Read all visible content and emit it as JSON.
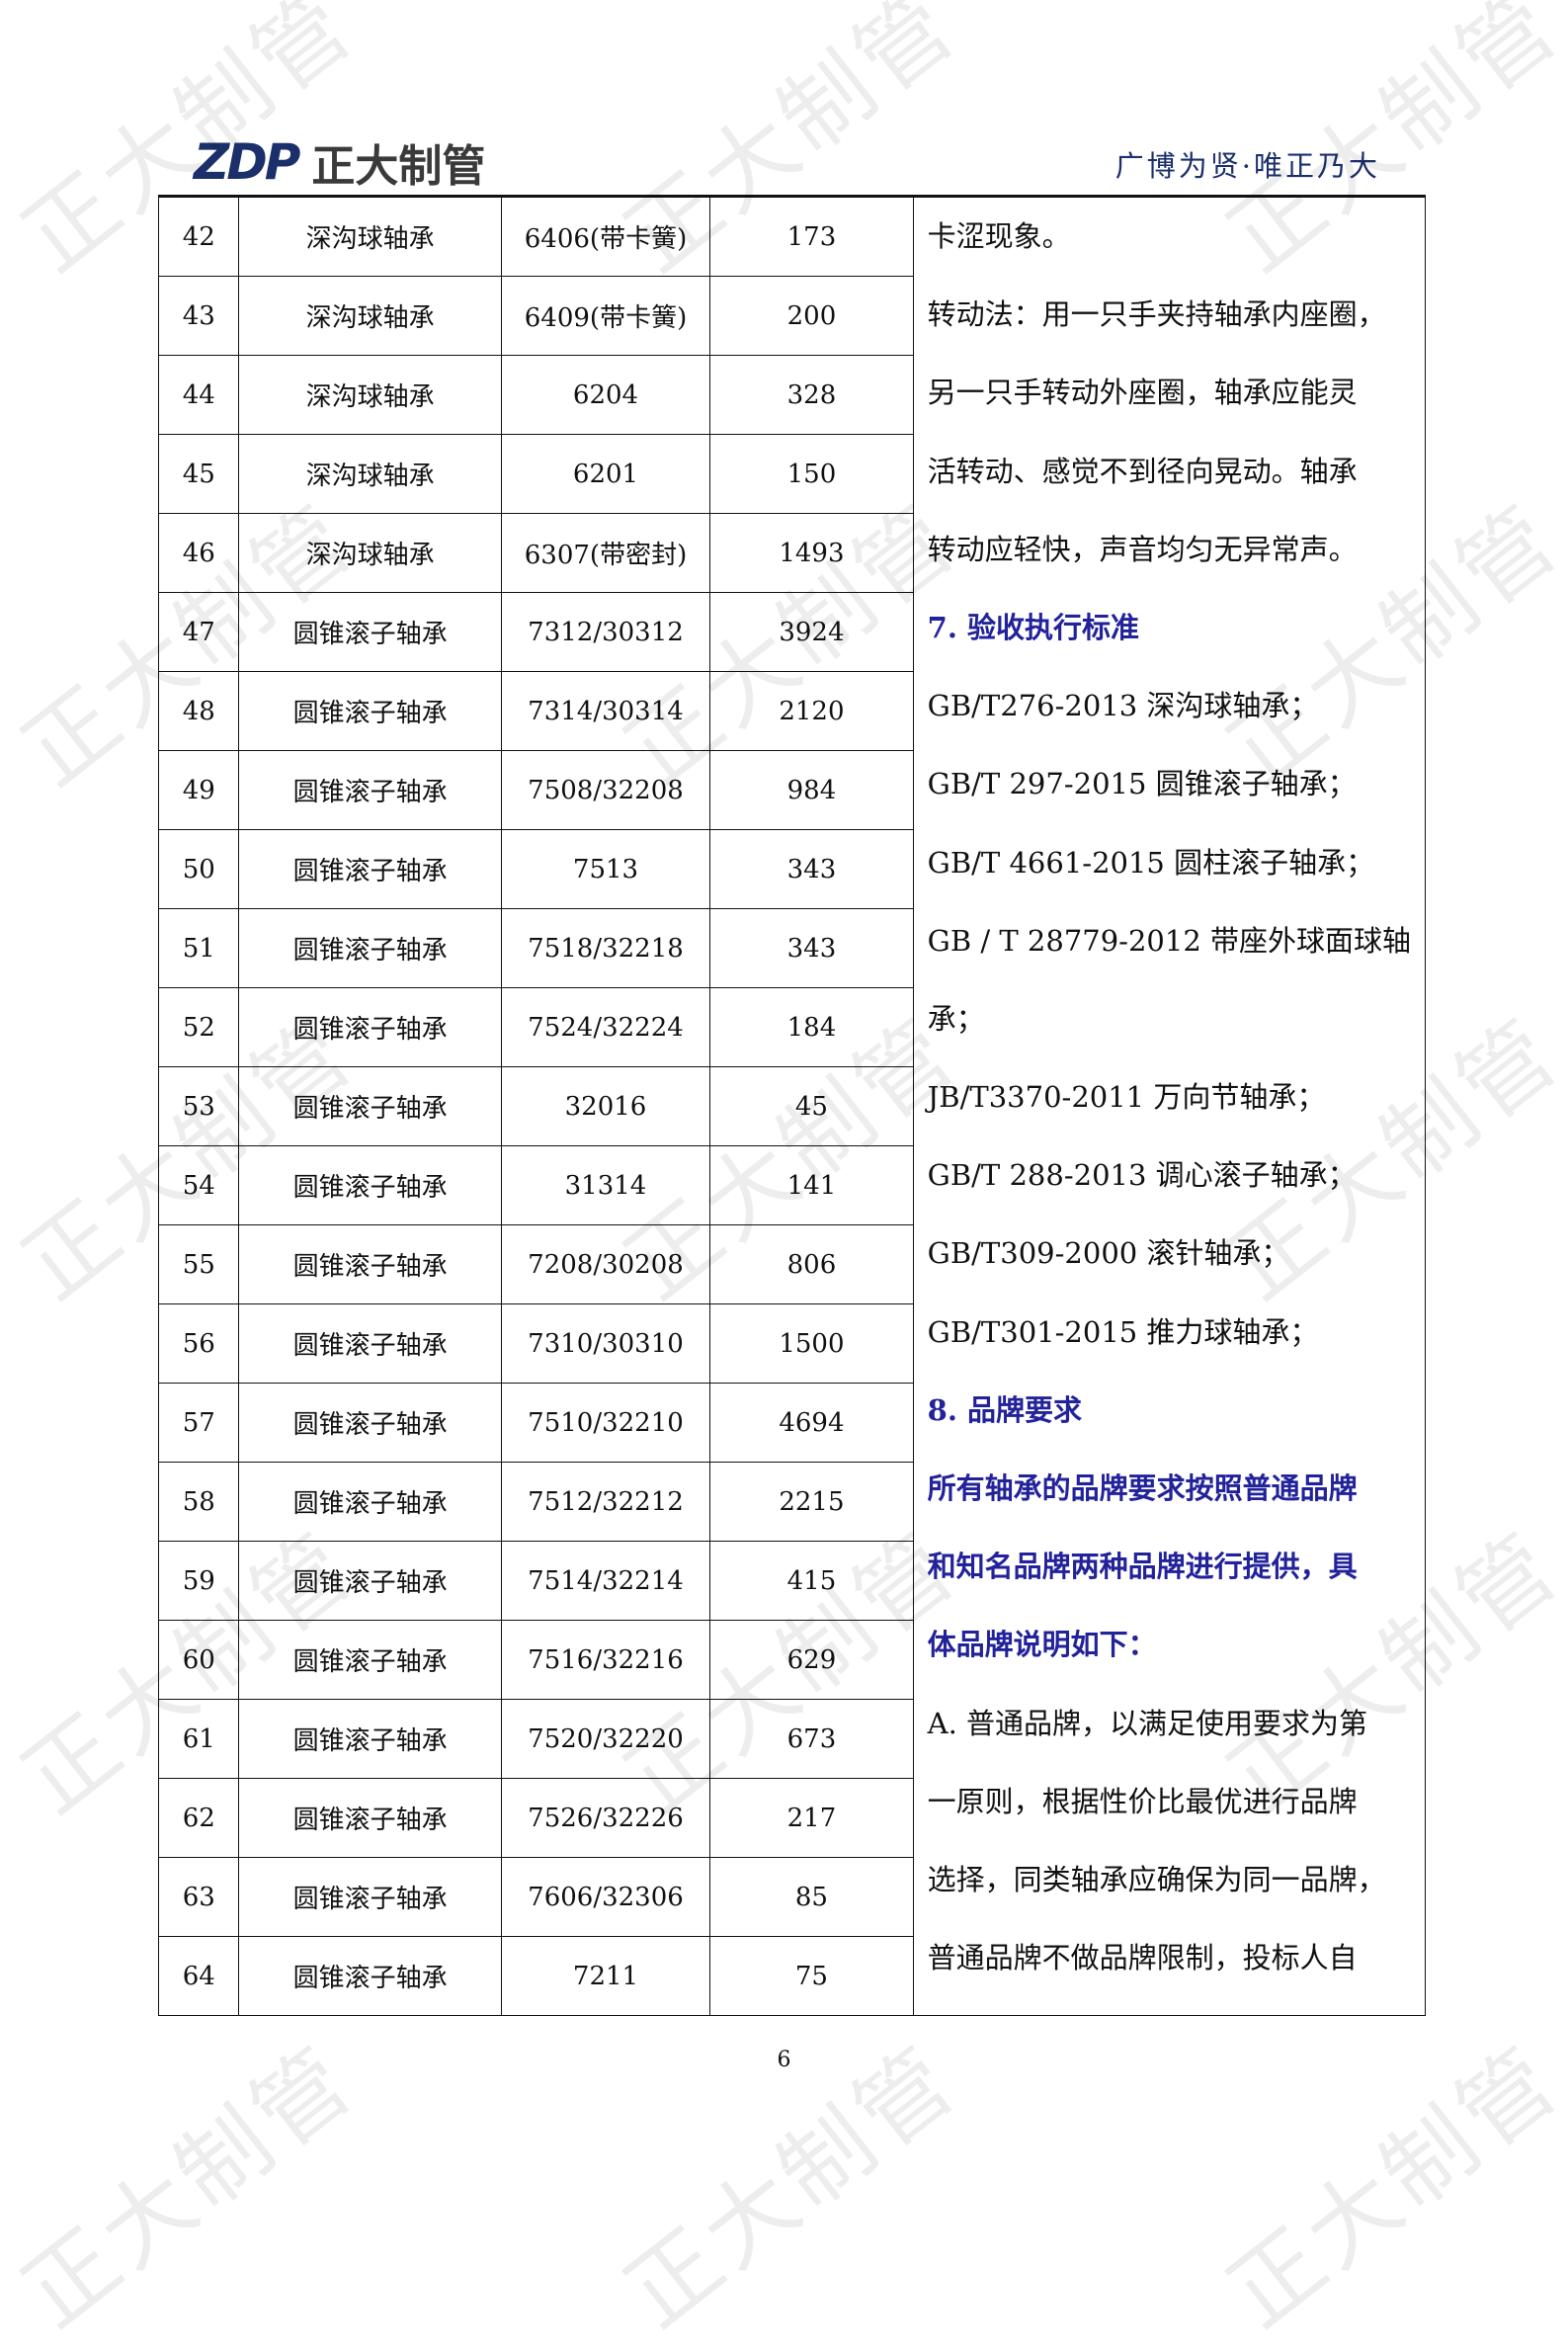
{
  "header": {
    "logo_mark": "ZDP",
    "logo_name": "正大制管",
    "slogan": "广博为贤·唯正乃大"
  },
  "watermark": "正大制管",
  "rows": [
    [
      "42",
      "深沟球轴承",
      "6406(带卡簧)",
      "173"
    ],
    [
      "43",
      "深沟球轴承",
      "6409(带卡簧)",
      "200"
    ],
    [
      "44",
      "深沟球轴承",
      "6204",
      "328"
    ],
    [
      "45",
      "深沟球轴承",
      "6201",
      "150"
    ],
    [
      "46",
      "深沟球轴承",
      "6307(带密封)",
      "1493"
    ],
    [
      "47",
      "圆锥滚子轴承",
      "7312/30312",
      "3924"
    ],
    [
      "48",
      "圆锥滚子轴承",
      "7314/30314",
      "2120"
    ],
    [
      "49",
      "圆锥滚子轴承",
      "7508/32208",
      "984"
    ],
    [
      "50",
      "圆锥滚子轴承",
      "7513",
      "343"
    ],
    [
      "51",
      "圆锥滚子轴承",
      "7518/32218",
      "343"
    ],
    [
      "52",
      "圆锥滚子轴承",
      "7524/32224",
      "184"
    ],
    [
      "53",
      "圆锥滚子轴承",
      "32016",
      "45"
    ],
    [
      "54",
      "圆锥滚子轴承",
      "31314",
      "141"
    ],
    [
      "55",
      "圆锥滚子轴承",
      "7208/30208",
      "806"
    ],
    [
      "56",
      "圆锥滚子轴承",
      "7310/30310",
      "1500"
    ],
    [
      "57",
      "圆锥滚子轴承",
      "7510/32210",
      "4694"
    ],
    [
      "58",
      "圆锥滚子轴承",
      "7512/32212",
      "2215"
    ],
    [
      "59",
      "圆锥滚子轴承",
      "7514/32214",
      "415"
    ],
    [
      "60",
      "圆锥滚子轴承",
      "7516/32216",
      "629"
    ],
    [
      "61",
      "圆锥滚子轴承",
      "7520/32220",
      "673"
    ],
    [
      "62",
      "圆锥滚子轴承",
      "7526/32226",
      "217"
    ],
    [
      "63",
      "圆锥滚子轴承",
      "7606/32306",
      "85"
    ],
    [
      "64",
      "圆锥滚子轴承",
      "7211",
      "75"
    ]
  ],
  "right_lines": [
    {
      "text": "卡涩现象。",
      "style": "normal"
    },
    {
      "text": "转动法：用一只手夹持轴承内座圈，",
      "style": "normal"
    },
    {
      "text": "另一只手转动外座圈，轴承应能灵",
      "style": "normal"
    },
    {
      "text": "活转动、感觉不到径向晃动。轴承",
      "style": "normal"
    },
    {
      "text": "转动应轻快，声音均匀无异常声。",
      "style": "normal"
    },
    {
      "text": "7. 验收执行标准",
      "style": "heading"
    },
    {
      "text": "GB/T276-2013 深沟球轴承；",
      "style": "normal"
    },
    {
      "text": "GB/T 297-2015 圆锥滚子轴承；",
      "style": "normal"
    },
    {
      "text": "GB/T 4661-2015 圆柱滚子轴承；",
      "style": "normal"
    },
    {
      "text": "GB / T 28779-2012 带座外球面球轴",
      "style": "normal"
    },
    {
      "text": "承；",
      "style": "normal"
    },
    {
      "text": "JB/T3370-2011 万向节轴承；",
      "style": "normal"
    },
    {
      "text": "GB/T 288-2013 调心滚子轴承；",
      "style": "normal"
    },
    {
      "text": "GB/T309-2000 滚针轴承；",
      "style": "normal"
    },
    {
      "text": "GB/T301-2015 推力球轴承；",
      "style": "normal"
    },
    {
      "text": "8. 品牌要求",
      "style": "heading"
    },
    {
      "text": "所有轴承的品牌要求按照普通品牌",
      "style": "heading"
    },
    {
      "text": "和知名品牌两种品牌进行提供，具",
      "style": "heading"
    },
    {
      "text": "体品牌说明如下：",
      "style": "heading"
    },
    {
      "text": "A. 普通品牌，以满足使用要求为第",
      "style": "normal"
    },
    {
      "text": "一原则，根据性价比最优进行品牌",
      "style": "normal"
    },
    {
      "text": "选择，同类轴承应确保为同一品牌，",
      "style": "normal"
    },
    {
      "text": "普通品牌不做品牌限制，投标人自",
      "style": "normal"
    }
  ],
  "page_number": "6",
  "colors": {
    "heading": "#22229a",
    "logo": "#1b2f6b"
  }
}
